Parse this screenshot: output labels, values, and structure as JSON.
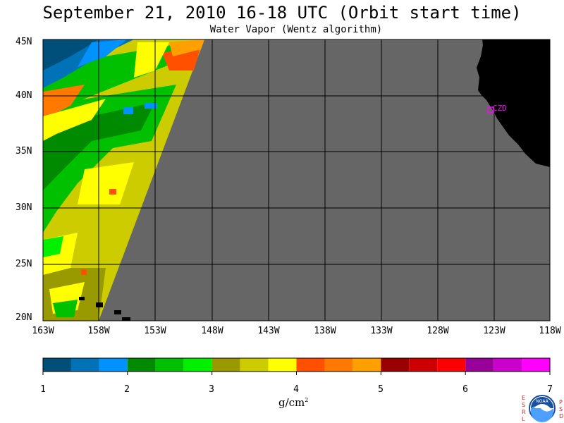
{
  "header": {
    "title": "September 21, 2010  16-18 UTC  (Orbit start time)",
    "subtitle": "Water Vapor (Wentz algorithm)"
  },
  "map": {
    "lat_labels": [
      "45N",
      "40N",
      "35N",
      "30N",
      "25N",
      "20N"
    ],
    "lon_labels": [
      "163W",
      "158W",
      "153W",
      "148W",
      "143W",
      "138W",
      "133W",
      "128W",
      "123W",
      "118W"
    ],
    "station_label": "CZD",
    "colors": {
      "no_data": "#666666",
      "land": "#000000",
      "grid": "#000000",
      "station": "#ff00ff"
    }
  },
  "colorbar": {
    "ticks": [
      "1",
      "2",
      "3",
      "4",
      "5",
      "6",
      "7"
    ],
    "units": "g/cm",
    "units_sup": "2",
    "colors": [
      "#004f7b",
      "#0072b8",
      "#0092ff",
      "#008a00",
      "#00c000",
      "#00f000",
      "#999900",
      "#cccc00",
      "#ffff00",
      "#ff5000",
      "#ff7800",
      "#ffa000",
      "#990000",
      "#cc0000",
      "#ff0000",
      "#990099",
      "#cc00cc",
      "#ff00ff"
    ]
  },
  "logo": {
    "left_letters": [
      "E",
      "S",
      "R",
      "L"
    ],
    "right_letters": [
      "P",
      "S",
      "D"
    ],
    "center_text": "NOAA"
  }
}
